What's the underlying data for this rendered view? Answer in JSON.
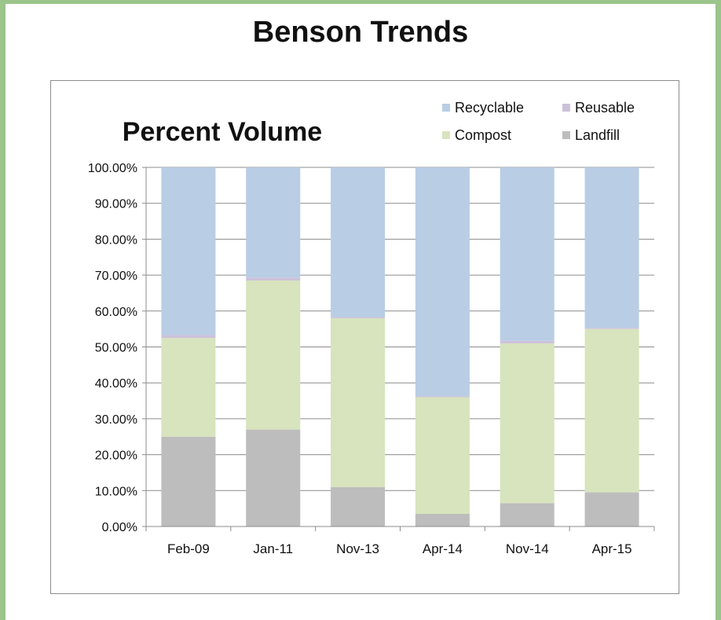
{
  "page": {
    "title": "Benson Trends"
  },
  "chart_data": {
    "type": "bar",
    "stacked": true,
    "title": "Percent Volume",
    "categories": [
      "Feb-09",
      "Jan-11",
      "Nov-13",
      "Apr-14",
      "Nov-14",
      "Apr-15"
    ],
    "series": [
      {
        "name": "Landfill",
        "color": "#bdbdbd",
        "values": [
          25.0,
          27.0,
          11.0,
          3.5,
          6.5,
          9.5
        ]
      },
      {
        "name": "Compost",
        "color": "#d7e4bd",
        "values": [
          27.5,
          41.5,
          47.0,
          32.5,
          44.5,
          45.5
        ]
      },
      {
        "name": "Reusable",
        "color": "#ccc1da",
        "values": [
          0.8,
          0.8,
          0.3,
          0.3,
          0.7,
          0.3
        ]
      },
      {
        "name": "Recyclable",
        "color": "#b9cde5",
        "values": [
          46.7,
          30.7,
          41.7,
          63.7,
          48.3,
          44.7
        ]
      }
    ],
    "legend_order": [
      "Recyclable",
      "Reusable",
      "Compost",
      "Landfill"
    ],
    "legend_position": "top-right",
    "y_ticks": [
      "0.00%",
      "10.00%",
      "20.00%",
      "30.00%",
      "40.00%",
      "50.00%",
      "60.00%",
      "70.00%",
      "80.00%",
      "90.00%",
      "100.00%"
    ],
    "ylim": [
      0,
      100
    ],
    "grid": true
  }
}
